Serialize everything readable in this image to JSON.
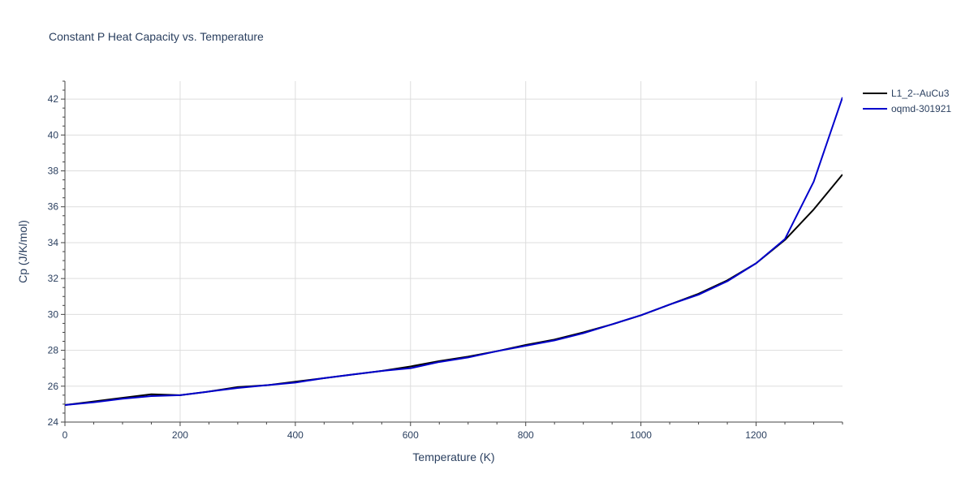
{
  "chart_data": {
    "type": "line",
    "title": "Constant P Heat Capacity vs. Temperature",
    "xlabel": "Temperature (K)",
    "ylabel": "Cp (J/K/mol)",
    "xlim": [
      0,
      1350
    ],
    "ylim": [
      24,
      43
    ],
    "xticks": [
      0,
      200,
      400,
      600,
      800,
      1000,
      1200
    ],
    "yticks": [
      24,
      26,
      28,
      30,
      32,
      34,
      36,
      38,
      40,
      42
    ],
    "grid": true,
    "legend_position": "top-right",
    "series": [
      {
        "name": "L1_2--AuCu3",
        "color": "#000000",
        "x": [
          0,
          50,
          100,
          150,
          200,
          250,
          300,
          350,
          400,
          450,
          500,
          550,
          600,
          650,
          700,
          750,
          800,
          850,
          900,
          950,
          1000,
          1050,
          1100,
          1150,
          1200,
          1250,
          1300,
          1350
        ],
        "y": [
          24.95,
          25.15,
          25.35,
          25.55,
          25.5,
          25.7,
          25.95,
          26.05,
          26.25,
          26.45,
          26.65,
          26.85,
          27.1,
          27.4,
          27.65,
          27.95,
          28.3,
          28.6,
          29.0,
          29.45,
          29.95,
          30.55,
          31.15,
          31.9,
          32.85,
          34.15,
          35.85,
          37.8
        ]
      },
      {
        "name": "oqmd-301921",
        "color": "#0000cc",
        "x": [
          0,
          50,
          100,
          150,
          200,
          250,
          300,
          350,
          400,
          450,
          500,
          550,
          600,
          650,
          700,
          750,
          800,
          850,
          900,
          950,
          1000,
          1050,
          1100,
          1150,
          1200,
          1250,
          1300,
          1350
        ],
        "y": [
          24.95,
          25.1,
          25.3,
          25.45,
          25.5,
          25.7,
          25.9,
          26.05,
          26.2,
          26.45,
          26.65,
          26.85,
          27.0,
          27.35,
          27.6,
          27.95,
          28.25,
          28.55,
          28.95,
          29.45,
          29.95,
          30.55,
          31.1,
          31.85,
          32.85,
          34.2,
          37.4,
          42.1
        ]
      }
    ]
  }
}
